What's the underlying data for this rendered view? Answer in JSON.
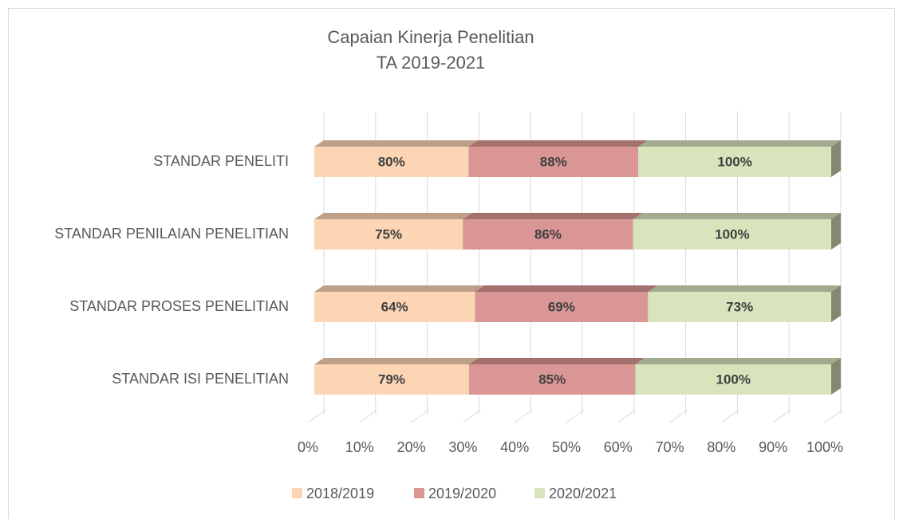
{
  "chart_data": {
    "type": "bar",
    "orientation": "horizontal",
    "stacking": "percent",
    "title": "Capaian Kinerja Penelitian",
    "subtitle": "TA 2019-2021",
    "categories": [
      "STANDAR PENELITI",
      "STANDAR PENILAIAN PENELITIAN",
      "STANDAR PROSES PENELITIAN",
      "STANDAR ISI PENELITIAN"
    ],
    "series": [
      {
        "name": "2018/2019",
        "color": "#fcd5b4",
        "values": [
          80,
          75,
          64,
          79
        ],
        "value_labels": [
          "80%",
          "75%",
          "64%",
          "79%"
        ]
      },
      {
        "name": "2019/2020",
        "color": "#da9694",
        "values": [
          88,
          86,
          69,
          85
        ],
        "value_labels": [
          "88%",
          "86%",
          "69%",
          "85%"
        ]
      },
      {
        "name": "2020/2021",
        "color": "#d8e4bc",
        "values": [
          100,
          100,
          73,
          100
        ],
        "value_labels": [
          "100%",
          "100%",
          "73%",
          "100%"
        ]
      }
    ],
    "xlim": [
      0,
      100
    ],
    "xticks": [
      {
        "value": 0,
        "label": "0%"
      },
      {
        "value": 10,
        "label": "10%"
      },
      {
        "value": 20,
        "label": "20%"
      },
      {
        "value": 30,
        "label": "30%"
      },
      {
        "value": 40,
        "label": "40%"
      },
      {
        "value": 50,
        "label": "50%"
      },
      {
        "value": 60,
        "label": "60%"
      },
      {
        "value": 70,
        "label": "70%"
      },
      {
        "value": 80,
        "label": "80%"
      },
      {
        "value": 90,
        "label": "90%"
      },
      {
        "value": 100,
        "label": "100%"
      }
    ],
    "grid": true,
    "legend": "bottom"
  }
}
